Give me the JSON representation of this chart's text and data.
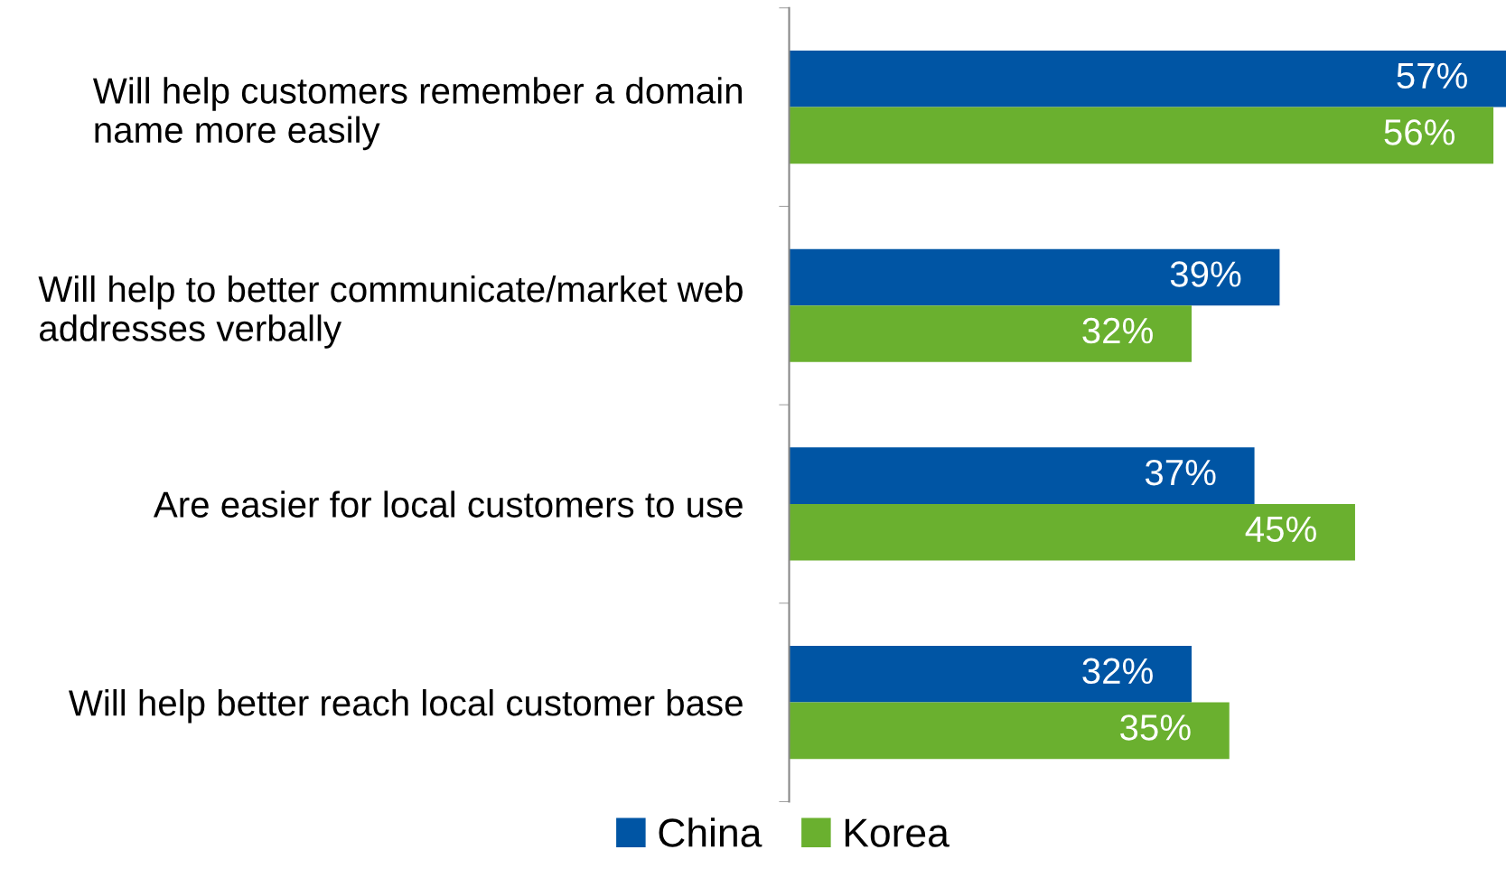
{
  "chart_data": {
    "type": "bar",
    "orientation": "horizontal",
    "categories": [
      "Will help customers remember a domain\nname more easily",
      "Will help to better communicate/market web\naddresses verbally",
      "Are easier for local customers to use",
      "Will help better reach local customer base"
    ],
    "series": [
      {
        "name": "China",
        "color": "#0055a4",
        "values": [
          57,
          39,
          37,
          32
        ],
        "value_labels": [
          "57%",
          "39%",
          "37%",
          "32%"
        ]
      },
      {
        "name": "Korea",
        "color": "#6ab02f",
        "values": [
          56,
          32,
          45,
          35
        ],
        "value_labels": [
          "56%",
          "32%",
          "45%",
          "35%"
        ]
      }
    ],
    "legend": "bottom",
    "grid": false
  }
}
